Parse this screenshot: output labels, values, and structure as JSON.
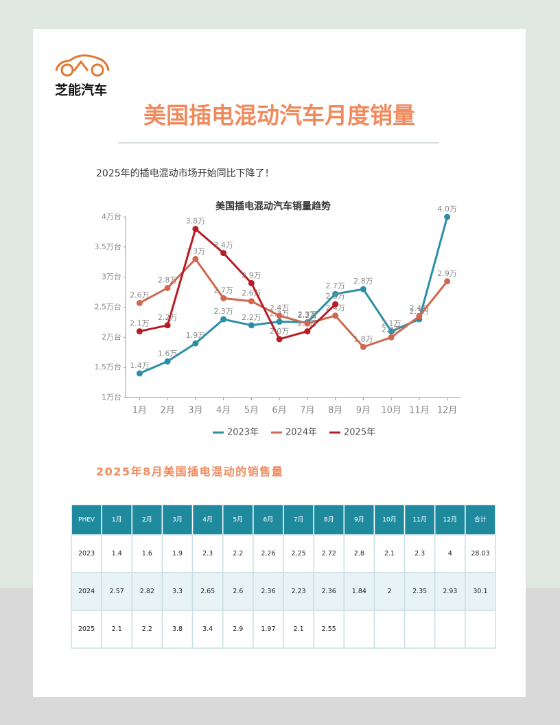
{
  "header": {
    "logo_text": "芝能汽车",
    "title": "美国插电混动汽车月度销量",
    "subtitle": "2025年的插电混动市场开始同比下降了！"
  },
  "chart_data": {
    "type": "line",
    "title": "美国插电混动汽车销量趋势",
    "categories": [
      "1月",
      "2月",
      "3月",
      "4月",
      "5月",
      "6月",
      "7月",
      "8月",
      "9月",
      "10月",
      "11月",
      "12月"
    ],
    "series": [
      {
        "name": "2023年",
        "color": "#2a8fa6",
        "values": [
          1.4,
          1.6,
          1.9,
          2.3,
          2.2,
          2.26,
          2.25,
          2.72,
          2.8,
          2.1,
          2.3,
          4
        ],
        "value_labels": [
          "1.4万",
          "1.6万",
          "1.9万",
          "2.3万",
          "2.2万",
          "2.3万",
          "2.3万",
          "2.7万",
          "2.8万",
          "2.1万",
          "2.3万",
          "4.0万"
        ]
      },
      {
        "name": "2024年",
        "color": "#d0674f",
        "values": [
          2.57,
          2.82,
          3.3,
          2.65,
          2.6,
          2.36,
          2.23,
          2.36,
          1.84,
          2,
          2.35,
          2.93
        ],
        "value_labels": [
          "2.6万",
          "2.8万",
          "3.3万",
          "2.7万",
          "2.6万",
          "2.4万",
          "2.2万",
          "2.4万",
          "1.8万",
          "2.0万",
          "2.4万",
          "2.9万"
        ]
      },
      {
        "name": "2025年",
        "color": "#b81c24",
        "values": [
          2.1,
          2.2,
          3.8,
          3.4,
          2.9,
          1.97,
          2.1,
          2.55,
          null,
          null,
          null,
          null
        ],
        "value_labels": [
          "2.1万",
          "2.2万",
          "3.8万",
          "3.4万",
          "2.9万",
          "2.0万",
          "2.1万",
          "2.6万",
          null,
          null,
          null,
          null
        ]
      }
    ],
    "ylim": [
      1,
      4
    ],
    "yticks": [
      {
        "value": 1,
        "label": "1万台"
      },
      {
        "value": 1.5,
        "label": "1.5万台"
      },
      {
        "value": 2,
        "label": "2万台"
      },
      {
        "value": 2.5,
        "label": "2.5万台"
      },
      {
        "value": 3,
        "label": "3万台"
      },
      {
        "value": 3.5,
        "label": "3.5万台"
      },
      {
        "value": 4,
        "label": "4万台"
      }
    ],
    "grid": false,
    "legend": "bottom"
  },
  "section_title": "2025年8月美国插电混动的销售量",
  "table": {
    "header": [
      "PHEV",
      "1月",
      "2月",
      "3月",
      "4月",
      "5月",
      "6月",
      "7月",
      "8月",
      "9月",
      "10月",
      "11月",
      "12月",
      "合计"
    ],
    "rows": [
      [
        2023,
        1.4,
        1.6,
        1.9,
        2.3,
        2.2,
        2.26,
        2.25,
        2.72,
        2.8,
        2.1,
        2.3,
        4,
        28.03
      ],
      [
        2024,
        2.57,
        2.82,
        3.3,
        2.65,
        2.6,
        2.36,
        2.23,
        2.36,
        1.84,
        2,
        2.35,
        2.93,
        30.1
      ],
      [
        2025,
        2.1,
        2.2,
        3.8,
        3.4,
        2.9,
        1.97,
        2.1,
        2.55,
        null,
        null,
        null,
        null,
        null
      ]
    ]
  }
}
